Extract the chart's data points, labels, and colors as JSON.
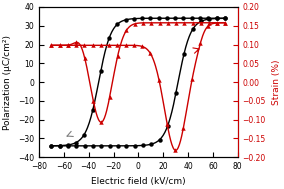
{
  "xlabel": "Electric field (kV/cm)",
  "ylabel_left": "Polarization (μC/cm²)",
  "ylabel_right": "Strain (%)",
  "xlim": [
    -80,
    80
  ],
  "ylim_left": [
    -40,
    40
  ],
  "ylim_right": [
    -0.2,
    0.2
  ],
  "xticks": [
    -80,
    -60,
    -40,
    -20,
    0,
    20,
    40,
    60,
    80
  ],
  "yticks_left": [
    -40,
    -30,
    -20,
    -10,
    0,
    10,
    20,
    30,
    40
  ],
  "yticks_right": [
    -0.2,
    -0.15,
    -0.1,
    -0.05,
    0.0,
    0.05,
    0.1,
    0.15,
    0.2
  ],
  "pol_color": "#000000",
  "strain_color": "#cc0000",
  "bg_color": "#ffffff",
  "figsize": [
    2.84,
    1.89
  ],
  "dpi": 100
}
